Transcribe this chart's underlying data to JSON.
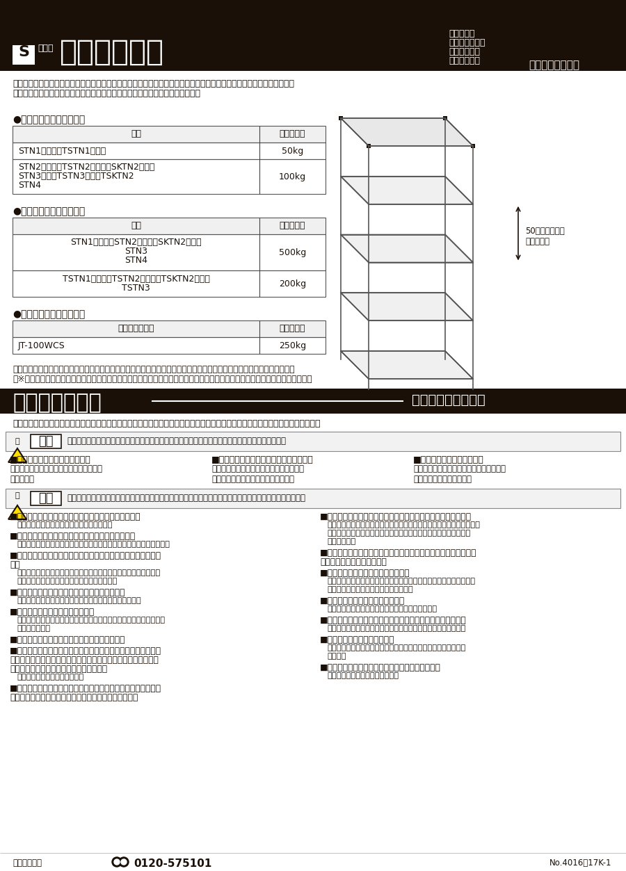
{
  "title_bg_color": "#1a1008",
  "section1_title": "●棚１段あたりの最大荷重",
  "section2_title": "●棚１連あたりの最大荷重",
  "section3_title": "●キャスター時の最大荷重",
  "note1": "　積載荷重は、製品の耐荷重の範囲内にして下さい。それ以上載せたり、荷重が片寄りますと製品破損の恐れがあります。",
  "note2": "　※「均等の耐荷重」とは、棚板の表面、または引出しの中へ均一に荷重をかけた場合に、耐えられる重さの合計量をいいます。",
  "safety_banner_bg": "#1a1008",
  "safety_title": "安全上のご注意",
  "safety_subtitle": "必ずお守りください",
  "safety_intro": "お使いになる人や、他の人への危険や財産への損害を未然に防止するため、必ずお守りいただく内容を次の要領で説明しています。",
  "warning_title": "警告",
  "warning_text": "誤った使いかたをすると「死亡または重症などを負う可能性が想定される」内容を説明しています。",
  "warning_col1_head": "■耐荷重以上の荷物を置かない。",
  "warning_col1_body": "ラックが傾いたり、棚板が曲がったりして\n危険です。",
  "warning_col2_head": "■足をかけたり、よじのぼったりしない。",
  "warning_col2_body": "転倒したり、天板が破損したり、足を滑ら\nせて、けがをするおそれがあります。",
  "warning_col3_head": "■不安定な場所に置かない。",
  "warning_col3_body": "ラックが倒れたり、荷物が落下して、けが\nをするおそれがあります。",
  "caution_title": "注意",
  "caution_text": "誤った使いかたをすると「損傷または財産への損害が発生する可能性が想定される」内容を説明しています。",
  "caution_col1": [
    [
      "■製品の上に腰を掛けたり、乗ったりしないで下さい。",
      "転倒や、破損、転落事故の原因となります。"
    ],
    [
      "■移動時は、ラックが傾かないようにゆっくり運ぶ。",
      "荷物が落ちたり、転倒して破損したり、けがをするおそれがあります。"
    ],
    [
      "■野外や水のかかる場所で使用しない。また、濡れた物を置かな\nい。",
      "本体が腐食し、倒壊するおそれがあります。商品が濡れた場合は、\n必ず乾いたやわらかい布で拭き取って下さい。"
    ],
    [
      "■壊れやすい物、危険物、薬品等は収納しない。",
      "破損してけがをしたり、健康を害するおそれがあります。"
    ],
    [
      "■傾斜地では使用しないで下さい。",
      "ラックが転倒するおそれがあり、人や物に当たりけがや破損するおそ\nれがあります。"
    ],
    [
      "■消耗品の交換は購入先を通じて御注文下さい。",
      ""
    ],
    [
      "■直射日光の当たる所に製品を置いたり、製品の上にハンダゴテ\n等高温になった器具類、加熱したナベ・ヤカン等を直接置く等、\n温度・湿度の著しい環境は避けて下さい。",
      "変色や変形の原因となります。"
    ],
    [
      "■アジャスター付き製品本体と、床面等にガタツキがある時は、\nアジャスターで調整し、水平の状態で使用して下さい。",
      ""
    ]
  ],
  "caution_col2": [
    [
      "■子供の手の触れる場所に置かない。また、子供を近づけない。",
      "ラックに触れて倒れたりして、けがをするおそれがあります。また、連\n結部・内部の切断面、および収納物によって、指をけがするおそれ\nもあります。"
    ],
    [
      "■可動面の隙間に指を入れますと、指をはさむおそれがありますの\nで絶対に入れないで下さい。",
      ""
    ],
    [
      "■改造や無理な修理、分解はしない。",
      "取付ミスなどにより、ラックが不安定になり危険です。特別なご使用\nをされる場合は購入店へご相談下さい。"
    ],
    [
      "■変形・破損したまま使用しない。",
      "転倒・落下により、けがをするおそれがあります。"
    ],
    [
      "■取付ビスがゆるんだり、外れたままで使用しないで下さい。",
      "変形や破損、転倒等の原因により抜け落ちるおそれがあります。"
    ],
    [
      "■消耗品には寿命があります。",
      "可動部等に異常音等（摩耗現象）が発生した場合購入店へご相談\n下さい。"
    ],
    [
      "■組立作業時は、必ず複数の人間で行って下さい。",
      "転倒等の事故の原因となります。"
    ]
  ],
  "footer_left": "お客様相談室",
  "footer_phone": "0120-575101",
  "footer_right": "No.4016　17K-1",
  "shelf_note": "50ミリピッチで\n段替え可能",
  "bg_color": "#ffffff",
  "text_color": "#1a1008"
}
